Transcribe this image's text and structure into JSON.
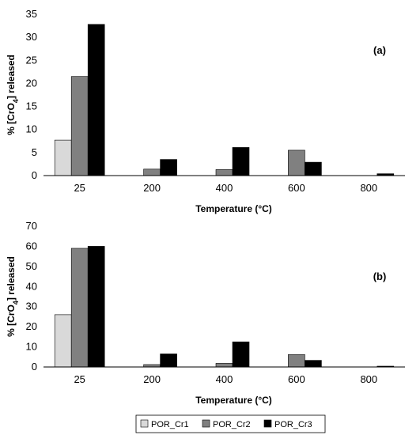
{
  "chart_data": [
    {
      "type": "bar",
      "panel_label": "(a)",
      "categories": [
        "25",
        "200",
        "400",
        "600",
        "800"
      ],
      "series": [
        {
          "name": "POR_Cr1",
          "color": "#d9d9d9",
          "values": [
            7.7,
            0,
            0,
            0,
            0
          ]
        },
        {
          "name": "POR_Cr2",
          "color": "#808080",
          "values": [
            21.5,
            1.4,
            1.3,
            5.5,
            0
          ]
        },
        {
          "name": "POR_Cr3",
          "color": "#000000",
          "values": [
            32.8,
            3.5,
            6.1,
            2.9,
            0.4
          ]
        }
      ],
      "xlabel": "Temperature (°C)",
      "ylabel": {
        "prefix": "% [CrO",
        "subscript": "4",
        "suffix": "] released"
      },
      "ylim": [
        0,
        35
      ],
      "yticks": [
        "0",
        "5",
        "10",
        "15",
        "20",
        "25",
        "30",
        "35"
      ],
      "grid": false
    },
    {
      "type": "bar",
      "panel_label": "(b)",
      "categories": [
        "25",
        "200",
        "400",
        "600",
        "800"
      ],
      "series": [
        {
          "name": "POR_Cr1",
          "color": "#d9d9d9",
          "values": [
            26,
            0,
            0,
            0,
            0
          ]
        },
        {
          "name": "POR_Cr2",
          "color": "#808080",
          "values": [
            59,
            1.2,
            1.8,
            6.2,
            0
          ]
        },
        {
          "name": "POR_Cr3",
          "color": "#000000",
          "values": [
            60,
            6.5,
            12.5,
            3.3,
            0.4
          ]
        }
      ],
      "xlabel": "Temperature (°C)",
      "ylabel": {
        "prefix": "% [CrO",
        "subscript": "4",
        "suffix": "] released"
      },
      "ylim": [
        0,
        70
      ],
      "yticks": [
        "0",
        "10",
        "20",
        "30",
        "40",
        "50",
        "60",
        "70"
      ],
      "grid": false
    }
  ],
  "legend": {
    "placement": "bottom-center",
    "items": [
      {
        "label": "POR_Cr1",
        "color": "#d9d9d9"
      },
      {
        "label": "POR_Cr2",
        "color": "#808080"
      },
      {
        "label": "POR_Cr3",
        "color": "#000000"
      }
    ]
  }
}
